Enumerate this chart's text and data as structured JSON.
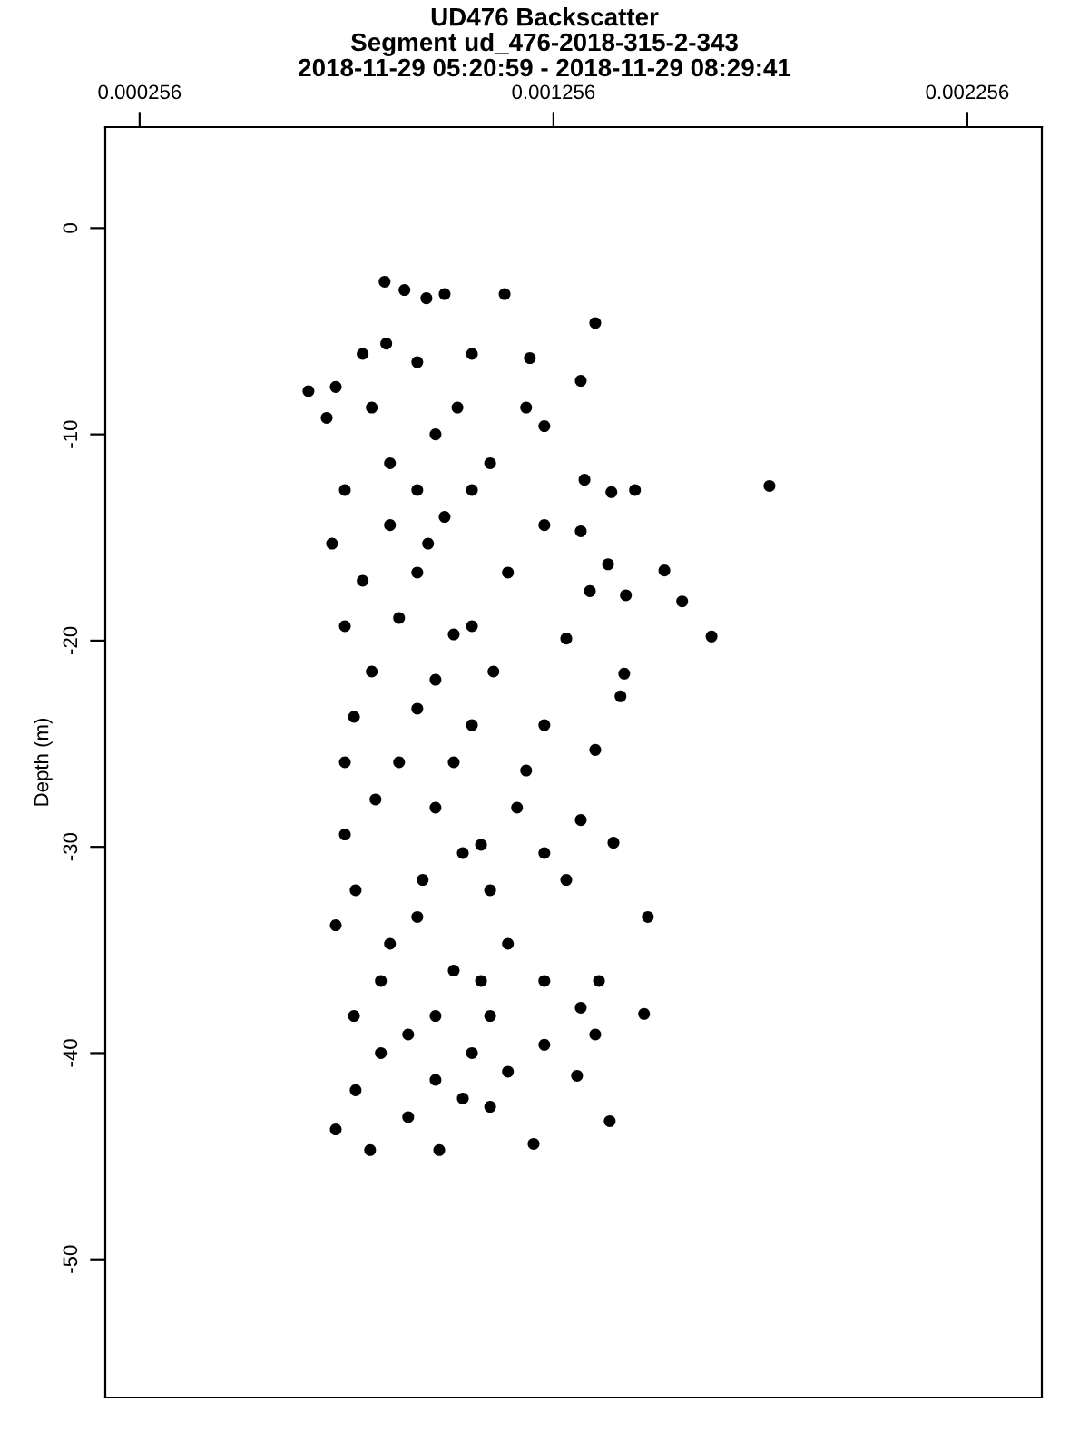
{
  "chart_data": {
    "type": "scatter",
    "title": "UD476 Backscatter\nSegment ud_476-2018-315-2-343\n2018-11-29 05:20:59 - 2018-11-29 08:29:41",
    "ylabel": "Depth (m)",
    "x": [
      0.000848,
      0.000896,
      0.000949,
      0.000993,
      0.001138,
      0.001357,
      0.000852,
      0.000795,
      0.000664,
      0.00073,
      0.001322,
      0.001199,
      0.001059,
      0.000927,
      0.000817,
      0.000708,
      0.001024,
      0.00119,
      0.000971,
      0.000861,
      0.001103,
      0.001234,
      0.000752,
      0.000927,
      0.001059,
      0.001331,
      0.001396,
      0.001453,
      0.001778,
      0.000721,
      0.000861,
      0.000993,
      0.001234,
      0.001322,
      0.001388,
      0.001524,
      0.000795,
      0.000927,
      0.001146,
      0.001344,
      0.001431,
      0.001567,
      0.000752,
      0.000883,
      0.001059,
      0.001287,
      0.001638,
      0.001427,
      0.001418,
      0.000817,
      0.000971,
      0.001111,
      0.000927,
      0.000774,
      0.001059,
      0.001234,
      0.000752,
      0.001015,
      0.00119,
      0.001357,
      0.000826,
      0.000971,
      0.001168,
      0.001322,
      0.000752,
      0.001081,
      0.001401,
      0.001234,
      0.000778,
      0.00094,
      0.001103,
      0.001287,
      0.001484,
      0.00073,
      0.000927,
      0.001146,
      0.000839,
      0.001015,
      0.001234,
      0.001366,
      0.000774,
      0.000971,
      0.001103,
      0.001322,
      0.001475,
      0.000839,
      0.001059,
      0.001234,
      0.001357,
      0.000778,
      0.000971,
      0.001146,
      0.001313,
      0.001392,
      0.00073,
      0.000905,
      0.001103,
      0.000813,
      0.00098,
      0.001208,
      0.000953,
      0.001015,
      0.000883,
      0.001037,
      0.000861,
      0.001081,
      0.000905,
      0.001037
    ],
    "values": [
      -2.6,
      -3.0,
      -3.4,
      -3.2,
      -3.2,
      -4.6,
      -5.6,
      -6.1,
      -7.9,
      -7.7,
      -7.4,
      -6.3,
      -6.1,
      -6.5,
      -8.7,
      -9.2,
      -8.7,
      -8.7,
      -10.0,
      -11.4,
      -11.4,
      -9.6,
      -12.7,
      -12.7,
      -12.7,
      -12.2,
      -12.8,
      -12.7,
      -12.5,
      -15.3,
      -14.4,
      -14.0,
      -14.4,
      -14.7,
      -16.3,
      -16.6,
      -17.1,
      -16.7,
      -16.7,
      -17.6,
      -17.8,
      -18.1,
      -19.3,
      -18.9,
      -19.3,
      -19.9,
      -19.8,
      -21.6,
      -22.7,
      -21.5,
      -21.9,
      -21.5,
      -23.3,
      -23.7,
      -24.1,
      -24.1,
      -25.9,
      -25.9,
      -26.3,
      -25.3,
      -27.7,
      -28.1,
      -28.1,
      -28.7,
      -29.4,
      -29.9,
      -29.8,
      -30.3,
      -32.1,
      -31.6,
      -32.1,
      -31.6,
      -33.4,
      -33.8,
      -33.4,
      -34.7,
      -36.5,
      -36.0,
      -36.5,
      -36.5,
      -38.2,
      -38.2,
      -38.2,
      -37.8,
      -38.1,
      -40.0,
      -40.0,
      -39.6,
      -39.1,
      -41.8,
      -41.3,
      -40.9,
      -41.1,
      -43.3,
      -43.7,
      -43.1,
      -42.6,
      -44.7,
      -44.7,
      -44.4,
      -15.3,
      -19.7,
      -25.9,
      -30.3,
      -34.7,
      -36.5,
      -39.1,
      -42.2
    ],
    "color": "#000000",
    "marker": "circle",
    "xlim": [
      0.000173,
      0.002436
    ],
    "xticks": [
      0.000256,
      0.001256,
      0.002256
    ],
    "ylim": [
      -56.7,
      4.9
    ],
    "yticks": [
      0,
      -10,
      -20,
      -30,
      -40,
      -50
    ],
    "grid": false
  }
}
